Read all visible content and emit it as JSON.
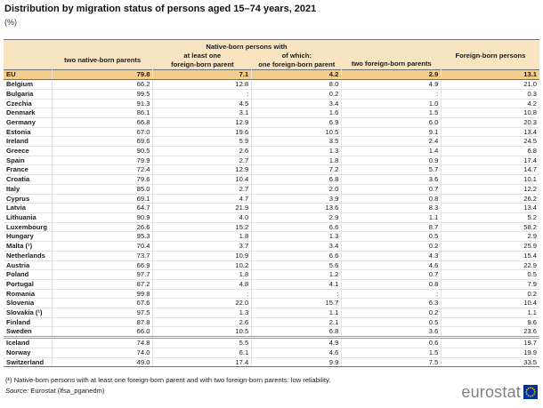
{
  "title": "Distribution by migration status of persons aged 15–74 years, 2021",
  "subtitle": "(%)",
  "colors": {
    "header_bg": "#f8e4c0",
    "eu_row_bg": "#f2cd8c",
    "rule_dark": "#6f7072",
    "rule_light": "#e5e3df",
    "logo_gray": "#7e8284",
    "eu_blue": "#003399",
    "eu_star_yellow": "#ffcc00"
  },
  "chart_data": {
    "type": "table",
    "title": "Distribution by migration status of persons aged 15–74 years, 2021",
    "unit": "(%)",
    "group_header": "Native-born persons with",
    "header": {
      "group": "Native-born persons with",
      "col1": "two native-born parents",
      "col2": "at least one\nforeign-born parent",
      "col3": "of which:\none foreign-born parent",
      "col4": "two foreign-born parents",
      "col5": "Foreign-born persons"
    },
    "columns": [
      "two native-born parents",
      "at least one foreign-born parent",
      "of which: one foreign-born parent",
      "two foreign-born parents",
      "Foreign-born persons"
    ],
    "missing_symbol": ":",
    "rows": [
      {
        "name": "EU",
        "values": [
          "79.8",
          "7.1",
          "4.2",
          "2.9",
          "13.1"
        ],
        "highlight": true
      },
      {
        "name": "Belgium",
        "values": [
          "66.2",
          "12.8",
          "8.0",
          "4.9",
          "21.0"
        ]
      },
      {
        "name": "Bulgaria",
        "values": [
          "99.5",
          ":",
          "0.2",
          ":",
          "0.3"
        ]
      },
      {
        "name": "Czechia",
        "values": [
          "91.3",
          "4.5",
          "3.4",
          "1.0",
          "4.2"
        ]
      },
      {
        "name": "Denmark",
        "values": [
          "86.1",
          "3.1",
          "1.6",
          "1.5",
          "10.8"
        ]
      },
      {
        "name": "Germany",
        "values": [
          "66.8",
          "12.9",
          "6.9",
          "6.0",
          "20.3"
        ]
      },
      {
        "name": "Estonia",
        "values": [
          "67.0",
          "19.6",
          "10.5",
          "9.1",
          "13.4"
        ]
      },
      {
        "name": "Ireland",
        "values": [
          "69.6",
          "5.9",
          "3.5",
          "2.4",
          "24.5"
        ]
      },
      {
        "name": "Greece",
        "values": [
          "90.5",
          "2.6",
          "1.3",
          "1.4",
          "6.8"
        ]
      },
      {
        "name": "Spain",
        "values": [
          "79.9",
          "2.7",
          "1.8",
          "0.9",
          "17.4"
        ]
      },
      {
        "name": "France",
        "values": [
          "72.4",
          "12.9",
          "7.2",
          "5.7",
          "14.7"
        ]
      },
      {
        "name": "Croatia",
        "values": [
          "79.6",
          "10.4",
          "6.8",
          "3.6",
          "10.1"
        ]
      },
      {
        "name": "Italy",
        "values": [
          "85.0",
          "2.7",
          "2.0",
          "0.7",
          "12.2"
        ]
      },
      {
        "name": "Cyprus",
        "values": [
          "69.1",
          "4.7",
          "3.9",
          "0.8",
          "26.2"
        ]
      },
      {
        "name": "Latvia",
        "values": [
          "64.7",
          "21.9",
          "13.6",
          "8.3",
          "13.4"
        ]
      },
      {
        "name": "Lithuania",
        "values": [
          "90.9",
          "4.0",
          "2.9",
          "1.1",
          "5.2"
        ]
      },
      {
        "name": "Luxembourg",
        "values": [
          "26.6",
          "15.2",
          "6.6",
          "8.7",
          "58.2"
        ]
      },
      {
        "name": "Hungary",
        "values": [
          "95.3",
          "1.8",
          "1.3",
          "0.5",
          "2.9"
        ]
      },
      {
        "name": "Malta (¹)",
        "values": [
          "70.4",
          "3.7",
          "3.4",
          "0.2",
          "25.9"
        ]
      },
      {
        "name": "Netherlands",
        "values": [
          "73.7",
          "10.9",
          "6.6",
          "4.3",
          "15.4"
        ]
      },
      {
        "name": "Austria",
        "values": [
          "66.9",
          "10.2",
          "5.6",
          "4.6",
          "22.9"
        ]
      },
      {
        "name": "Poland",
        "values": [
          "97.7",
          "1.8",
          "1.2",
          "0.7",
          "0.5"
        ]
      },
      {
        "name": "Portugal",
        "values": [
          "87.2",
          "4.8",
          "4.1",
          "0.8",
          "7.9"
        ]
      },
      {
        "name": "Romania",
        "values": [
          "99.8",
          ":",
          ":",
          ":",
          "0.2"
        ]
      },
      {
        "name": "Slovenia",
        "values": [
          "67.6",
          "22.0",
          "15.7",
          "6.3",
          "10.4"
        ]
      },
      {
        "name": "Slovakia (¹)",
        "values": [
          "97.5",
          "1.3",
          "1.1",
          "0.2",
          "1.1"
        ]
      },
      {
        "name": "Finland",
        "values": [
          "87.8",
          "2.6",
          "2.1",
          "0.5",
          "9.6"
        ]
      },
      {
        "name": "Sweden",
        "values": [
          "66.0",
          "10.5",
          "6.8",
          "3.6",
          "23.6"
        ],
        "separator_below": true
      },
      {
        "name": "Iceland",
        "values": [
          "74.8",
          "5.5",
          "4.9",
          "0.6",
          "19.7"
        ]
      },
      {
        "name": "Norway",
        "values": [
          "74.0",
          "6.1",
          "4.6",
          "1.5",
          "19.9"
        ]
      },
      {
        "name": "Switzerland",
        "values": [
          "49.0",
          "17.4",
          "9.9",
          "7.5",
          "33.5"
        ]
      }
    ]
  },
  "footnote": "(¹) Native-born persons with at least one foreign-born parent and with two foreign-born parents: low reliability.",
  "source": {
    "label": "Source:",
    "text": "Eurostat (lfsa_pganedm)"
  },
  "logo": {
    "text": "eurostat"
  }
}
